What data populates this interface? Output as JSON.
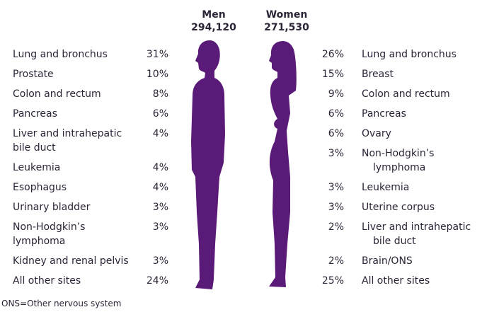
{
  "men": {
    "label": "Men",
    "total": "294,120",
    "rows": [
      {
        "site": [
          "Lung and bronchus"
        ],
        "pct": "31%"
      },
      {
        "site": [
          "Prostate"
        ],
        "pct": "10%"
      },
      {
        "site": [
          "Colon and rectum"
        ],
        "pct": "8%"
      },
      {
        "site": [
          "Pancreas"
        ],
        "pct": "6%"
      },
      {
        "site": [
          "Liver and intrahepatic",
          "bile duct"
        ],
        "pct": "4%"
      },
      {
        "site": [
          "Leukemia"
        ],
        "pct": "4%"
      },
      {
        "site": [
          "Esophagus"
        ],
        "pct": "4%"
      },
      {
        "site": [
          "Urinary bladder"
        ],
        "pct": "3%"
      },
      {
        "site": [
          "Non-Hodgkin’s",
          "lymphoma"
        ],
        "pct": "3%"
      },
      {
        "site": [
          "Kidney and renal pelvis"
        ],
        "pct": "3%"
      },
      {
        "site": [
          "All other sites"
        ],
        "pct": "24%"
      }
    ]
  },
  "women": {
    "label": "Women",
    "total": "271,530",
    "rows": [
      {
        "site": [
          "Lung and bronchus"
        ],
        "pct": "26%"
      },
      {
        "site": [
          "Breast"
        ],
        "pct": "15%"
      },
      {
        "site": [
          "Colon and rectum"
        ],
        "pct": "9%"
      },
      {
        "site": [
          "Pancreas"
        ],
        "pct": "6%"
      },
      {
        "site": [
          "Ovary"
        ],
        "pct": "6%"
      },
      {
        "site": [
          "Non-Hodgkin’s",
          "lymphoma"
        ],
        "pct": "3%"
      },
      {
        "site": [
          "Leukemia"
        ],
        "pct": "3%"
      },
      {
        "site": [
          "Uterine corpus"
        ],
        "pct": "3%"
      },
      {
        "site": [
          "Liver and intrahepatic",
          "bile duct"
        ],
        "pct": "2%"
      },
      {
        "site": [
          "Brain/ONS"
        ],
        "pct": "2%"
      },
      {
        "site": [
          "All other sites"
        ],
        "pct": "25%"
      }
    ]
  },
  "footnote": "ONS=Other nervous system"
}
